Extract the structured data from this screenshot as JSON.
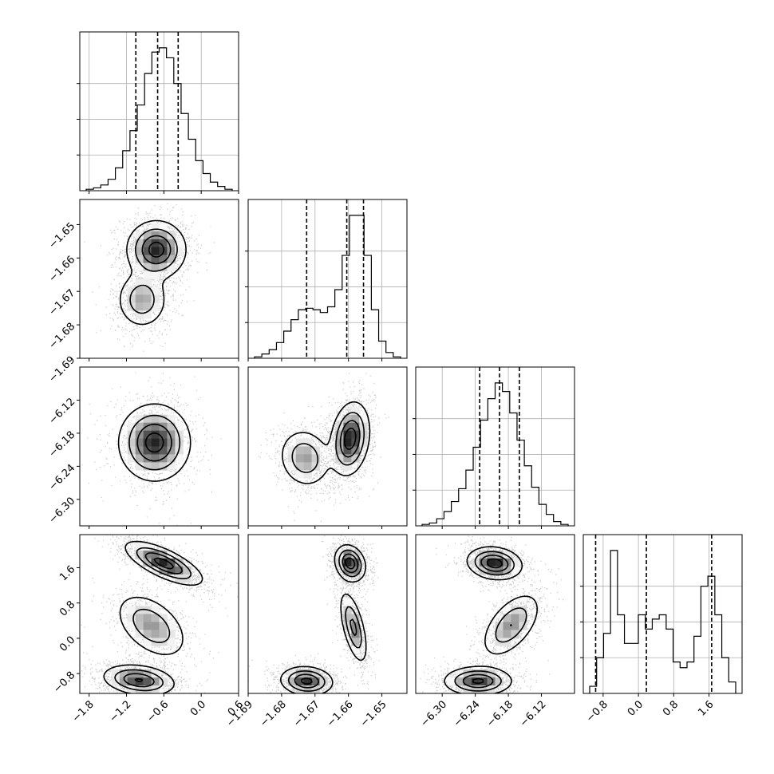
{
  "chart_data": {
    "type": "corner",
    "parameters": [
      {
        "ticks": [
          -1.8,
          -1.2,
          -0.6,
          0.0,
          0.6
        ],
        "tick_labels": [
          "−1.8",
          "−1.2",
          "−0.6",
          "0.0",
          "0.6"
        ],
        "range": [
          -1.95,
          0.6
        ],
        "quantiles": [
          -1.05,
          -0.7,
          -0.37
        ]
      },
      {
        "ticks": [
          -1.69,
          -1.68,
          -1.67,
          -1.66,
          -1.65
        ],
        "tick_labels": [
          "−1.69",
          "−1.68",
          "−1.67",
          "−1.66",
          "−1.65"
        ],
        "range": [
          -1.69,
          -1.6425
        ],
        "quantiles": [
          -1.6725,
          -1.6605,
          -1.6555
        ]
      },
      {
        "ticks": [
          -6.3,
          -6.24,
          -6.18,
          -6.12
        ],
        "tick_labels": [
          "−6.30",
          "−6.24",
          "−6.18",
          "−6.12"
        ],
        "range": [
          -6.348,
          -6.06
        ],
        "quantiles": [
          -6.232,
          -6.196,
          -6.16
        ]
      },
      {
        "ticks": [
          -0.8,
          0.0,
          0.8,
          1.6
        ],
        "tick_labels": [
          "−0.8",
          "0.0",
          "0.8",
          "1.6"
        ],
        "range": [
          -1.25,
          2.35
        ],
        "quantiles": [
          -0.97,
          0.18,
          1.66
        ]
      }
    ],
    "histograms": [
      {
        "counts": [
          1,
          2,
          4,
          8,
          16,
          28,
          42,
          60,
          82,
          97,
          100,
          93,
          75,
          54,
          36,
          21,
          12,
          6,
          3,
          1
        ]
      },
      {
        "counts": [
          1,
          3,
          6,
          11,
          19,
          27,
          34,
          35,
          34,
          32,
          36,
          48,
          72,
          100,
          100,
          72,
          34,
          12,
          4,
          1
        ]
      },
      {
        "counts": [
          1,
          2,
          5,
          10,
          17,
          26,
          39,
          55,
          74,
          89,
          100,
          94,
          79,
          60,
          42,
          27,
          15,
          8,
          3,
          1
        ]
      },
      {
        "counts": [
          5,
          25,
          42,
          100,
          55,
          35,
          35,
          55,
          45,
          52,
          55,
          45,
          22,
          18,
          22,
          40,
          75,
          82,
          55,
          25,
          8
        ]
      }
    ],
    "panels": [
      {
        "row": 1,
        "col": 0,
        "blobs": [
          {
            "cx": -0.72,
            "cy": -1.6575,
            "sx": 0.23,
            "sy": 0.0042,
            "rho": 0.0,
            "w": 1.0
          },
          {
            "cx": -0.95,
            "cy": -1.6725,
            "sx": 0.2,
            "sy": 0.0042,
            "rho": 0.0,
            "w": 0.55
          }
        ]
      },
      {
        "row": 2,
        "col": 0,
        "blobs": [
          {
            "cx": -0.75,
            "cy": -6.197,
            "sx": 0.28,
            "sy": 0.034,
            "rho": 0.0,
            "w": 1.0
          }
        ]
      },
      {
        "row": 2,
        "col": 1,
        "blobs": [
          {
            "cx": -1.6595,
            "cy": -6.19,
            "sx": 0.0028,
            "sy": 0.032,
            "rho": 0.2,
            "w": 1.0
          },
          {
            "cx": -1.673,
            "cy": -6.225,
            "sx": 0.0038,
            "sy": 0.026,
            "rho": -0.1,
            "w": 0.55
          }
        ]
      },
      {
        "row": 3,
        "col": 0,
        "blobs": [
          {
            "cx": -0.6,
            "cy": 1.7,
            "sx": 0.3,
            "sy": 0.24,
            "rho": -0.72,
            "w": 1.0
          },
          {
            "cx": -0.8,
            "cy": 0.28,
            "sx": 0.28,
            "sy": 0.36,
            "rho": -0.45,
            "w": 0.6
          },
          {
            "cx": -1.0,
            "cy": -0.95,
            "sx": 0.28,
            "sy": 0.17,
            "rho": -0.25,
            "w": 0.9
          }
        ]
      },
      {
        "row": 3,
        "col": 1,
        "blobs": [
          {
            "cx": -1.6595,
            "cy": 1.7,
            "sx": 0.0022,
            "sy": 0.2,
            "rho": -0.2,
            "w": 1.0
          },
          {
            "cx": -1.6585,
            "cy": 0.25,
            "sx": 0.002,
            "sy": 0.4,
            "rho": -0.6,
            "w": 0.65
          },
          {
            "cx": -1.6725,
            "cy": -0.97,
            "sx": 0.0038,
            "sy": 0.16,
            "rho": -0.1,
            "w": 0.9
          }
        ]
      },
      {
        "row": 3,
        "col": 2,
        "blobs": [
          {
            "cx": -6.205,
            "cy": 1.7,
            "sx": 0.024,
            "sy": 0.18,
            "rho": -0.15,
            "w": 1.0
          },
          {
            "cx": -6.175,
            "cy": 0.3,
            "sx": 0.026,
            "sy": 0.36,
            "rho": 0.55,
            "w": 0.6
          },
          {
            "cx": -6.235,
            "cy": -0.97,
            "sx": 0.03,
            "sy": 0.16,
            "rho": 0.0,
            "w": 0.9
          }
        ]
      }
    ],
    "grid": true
  }
}
